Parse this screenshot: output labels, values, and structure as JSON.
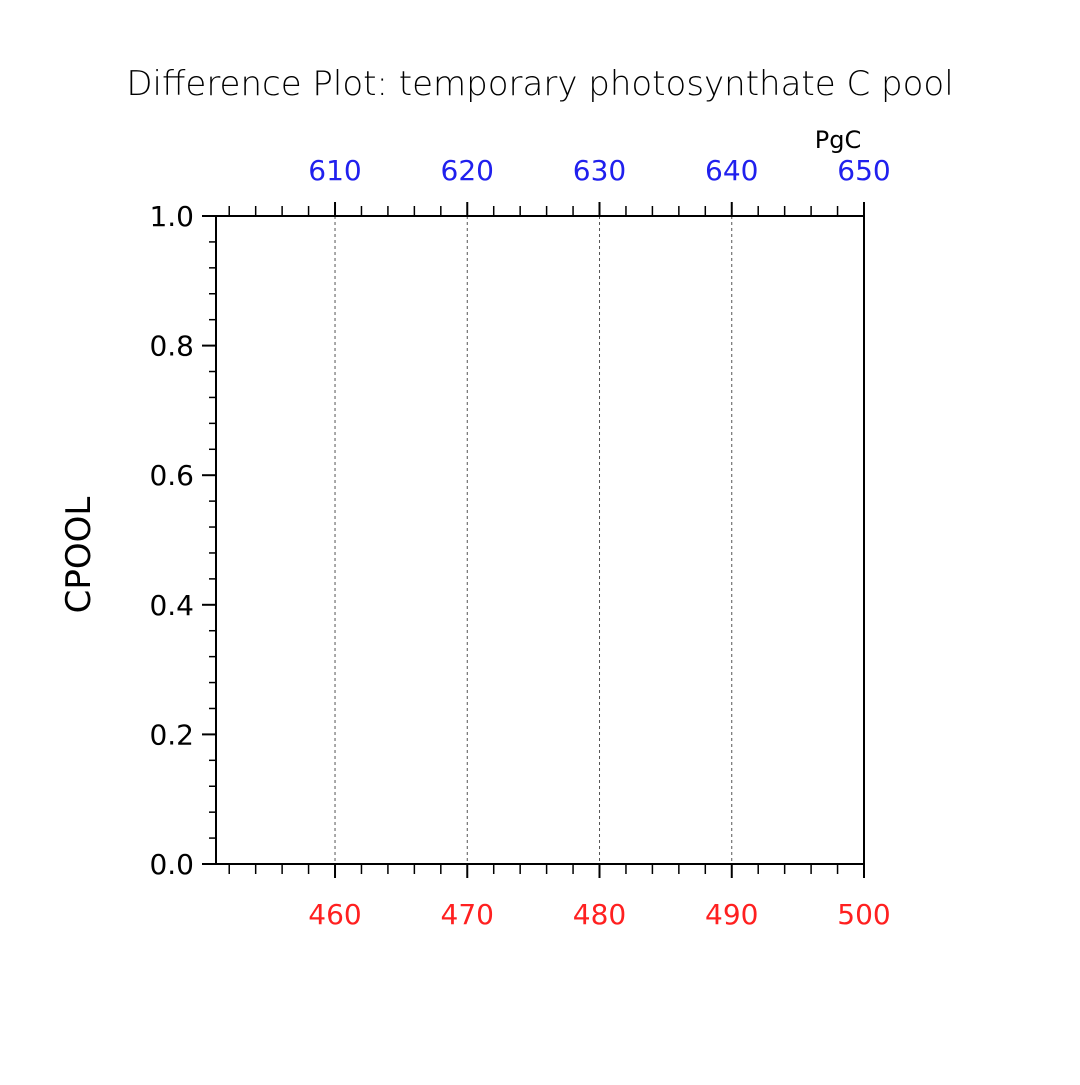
{
  "chart_data": {
    "type": "line",
    "title": "Difference Plot: temporary photosynthate C pool",
    "ylabel": "CPOOL",
    "top_axis_unit": "PgC",
    "ylim": [
      0.0,
      1.0
    ],
    "yticks": [
      0.0,
      0.2,
      0.4,
      0.6,
      0.8,
      1.0
    ],
    "ytick_labels": [
      "0.0",
      "0.2",
      "0.4",
      "0.6",
      "0.8",
      "1.0"
    ],
    "bottom_axis": {
      "xlim": [
        451,
        500
      ],
      "ticks": [
        460,
        470,
        480,
        490,
        500
      ],
      "tick_labels": [
        "460",
        "470",
        "480",
        "490",
        "500"
      ],
      "color": "#ff2020"
    },
    "top_axis": {
      "xlim": [
        601,
        650
      ],
      "ticks": [
        610,
        620,
        630,
        640,
        650
      ],
      "tick_labels": [
        "610",
        "620",
        "630",
        "640",
        "650"
      ],
      "color": "#2020ee"
    },
    "vertical_gridlines_at": [
      460,
      470,
      480,
      490
    ],
    "grid": true,
    "series": []
  }
}
